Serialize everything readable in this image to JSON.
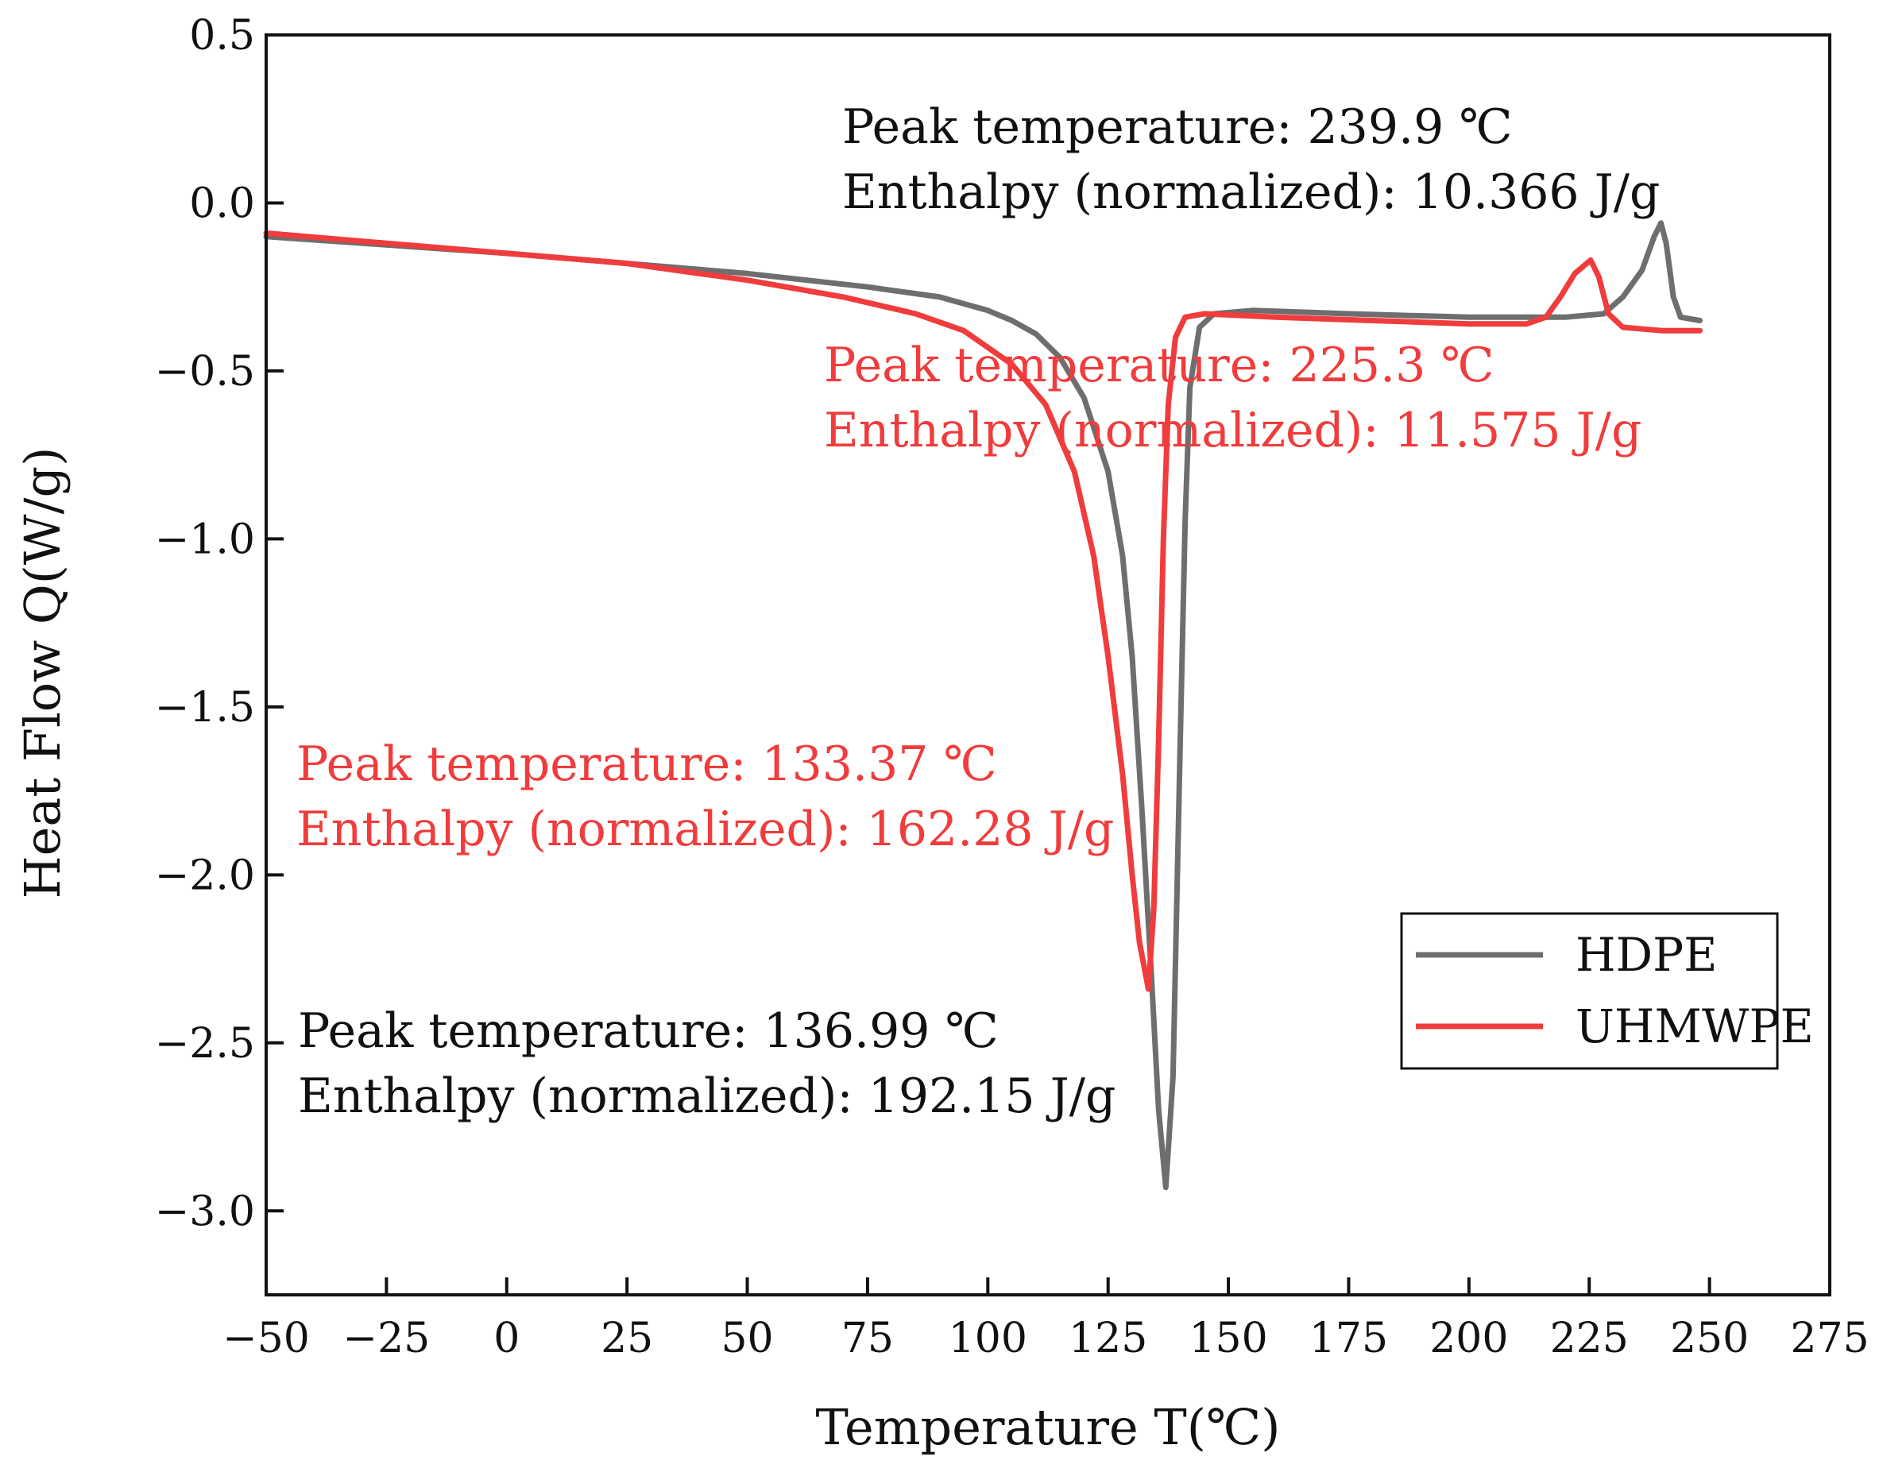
{
  "chart_data": {
    "type": "line",
    "xlabel": "Temperature T(℃)",
    "ylabel": "Heat Flow Q(W/g)",
    "xlim": [
      -50,
      275
    ],
    "ylim": [
      -3.25,
      0.5
    ],
    "x_ticks": [
      -50,
      -25,
      0,
      25,
      50,
      75,
      100,
      125,
      150,
      175,
      200,
      225,
      250,
      275
    ],
    "x_tick_labels": [
      "-50",
      "-25",
      "0",
      "25",
      "50",
      "75",
      "100",
      "125",
      "150",
      "175",
      "200",
      "225",
      "250",
      "275"
    ],
    "y_ticks": [
      0.5,
      0.0,
      -0.5,
      -1.0,
      -1.5,
      -2.0,
      -2.5,
      -3.0
    ],
    "y_tick_labels": [
      "0.5",
      "0.0",
      "-0.5",
      "-1.0",
      "-1.5",
      "-2.0",
      "-2.5",
      "-3.0"
    ],
    "grid": false,
    "legend_position": "bottom-right",
    "series": [
      {
        "name": "HDPE",
        "color": "#6e6e6e",
        "points": [
          [
            -50,
            -0.1
          ],
          [
            0,
            -0.15
          ],
          [
            25,
            -0.18
          ],
          [
            50,
            -0.21
          ],
          [
            75,
            -0.25
          ],
          [
            90,
            -0.28
          ],
          [
            100,
            -0.32
          ],
          [
            105,
            -0.35
          ],
          [
            110,
            -0.39
          ],
          [
            115,
            -0.46
          ],
          [
            120,
            -0.58
          ],
          [
            125,
            -0.8
          ],
          [
            128,
            -1.05
          ],
          [
            130,
            -1.35
          ],
          [
            132,
            -1.8
          ],
          [
            134,
            -2.3
          ],
          [
            135.5,
            -2.7
          ],
          [
            136.99,
            -2.93
          ],
          [
            138.5,
            -2.6
          ],
          [
            140,
            -1.6
          ],
          [
            141,
            -0.95
          ],
          [
            142,
            -0.55
          ],
          [
            144,
            -0.37
          ],
          [
            147,
            -0.33
          ],
          [
            155,
            -0.32
          ],
          [
            175,
            -0.33
          ],
          [
            200,
            -0.34
          ],
          [
            220,
            -0.34
          ],
          [
            228,
            -0.33
          ],
          [
            232,
            -0.28
          ],
          [
            236,
            -0.2
          ],
          [
            238.5,
            -0.1
          ],
          [
            239.9,
            -0.06
          ],
          [
            241,
            -0.12
          ],
          [
            242.5,
            -0.28
          ],
          [
            244,
            -0.34
          ],
          [
            248,
            -0.35
          ]
        ]
      },
      {
        "name": "UHMWPE",
        "color": "#f03c3c",
        "points": [
          [
            -50,
            -0.09
          ],
          [
            0,
            -0.15
          ],
          [
            25,
            -0.18
          ],
          [
            50,
            -0.23
          ],
          [
            70,
            -0.28
          ],
          [
            85,
            -0.33
          ],
          [
            95,
            -0.38
          ],
          [
            105,
            -0.48
          ],
          [
            112,
            -0.6
          ],
          [
            118,
            -0.8
          ],
          [
            122,
            -1.05
          ],
          [
            125,
            -1.35
          ],
          [
            128,
            -1.7
          ],
          [
            130,
            -2.0
          ],
          [
            131.5,
            -2.2
          ],
          [
            133.37,
            -2.34
          ],
          [
            134.5,
            -2.1
          ],
          [
            135.5,
            -1.6
          ],
          [
            136.5,
            -1.0
          ],
          [
            137.5,
            -0.6
          ],
          [
            139,
            -0.4
          ],
          [
            141,
            -0.34
          ],
          [
            145,
            -0.33
          ],
          [
            160,
            -0.34
          ],
          [
            180,
            -0.35
          ],
          [
            200,
            -0.36
          ],
          [
            212,
            -0.36
          ],
          [
            216,
            -0.34
          ],
          [
            219,
            -0.28
          ],
          [
            222,
            -0.21
          ],
          [
            225.3,
            -0.17
          ],
          [
            227,
            -0.22
          ],
          [
            229,
            -0.33
          ],
          [
            232,
            -0.37
          ],
          [
            240,
            -0.38
          ],
          [
            248,
            -0.38
          ]
        ]
      }
    ],
    "annotations": [
      {
        "lines": [
          "Peak temperature: 239.9 ℃",
          "Enthalpy (normalized): 10.366 J/g"
        ],
        "series": "HDPE",
        "color": "#111111"
      },
      {
        "lines": [
          "Peak temperature: 225.3 ℃",
          "Enthalpy (normalized): 11.575 J/g"
        ],
        "series": "UHMWPE",
        "color": "#f03c3c"
      },
      {
        "lines": [
          "Peak temperature: 133.37 ℃",
          "Enthalpy (normalized): 162.28 J/g"
        ],
        "series": "UHMWPE",
        "color": "#f03c3c"
      },
      {
        "lines": [
          "Peak temperature: 136.99 ℃",
          "Enthalpy (normalized): 192.15 J/g"
        ],
        "series": "HDPE",
        "color": "#111111"
      }
    ]
  }
}
